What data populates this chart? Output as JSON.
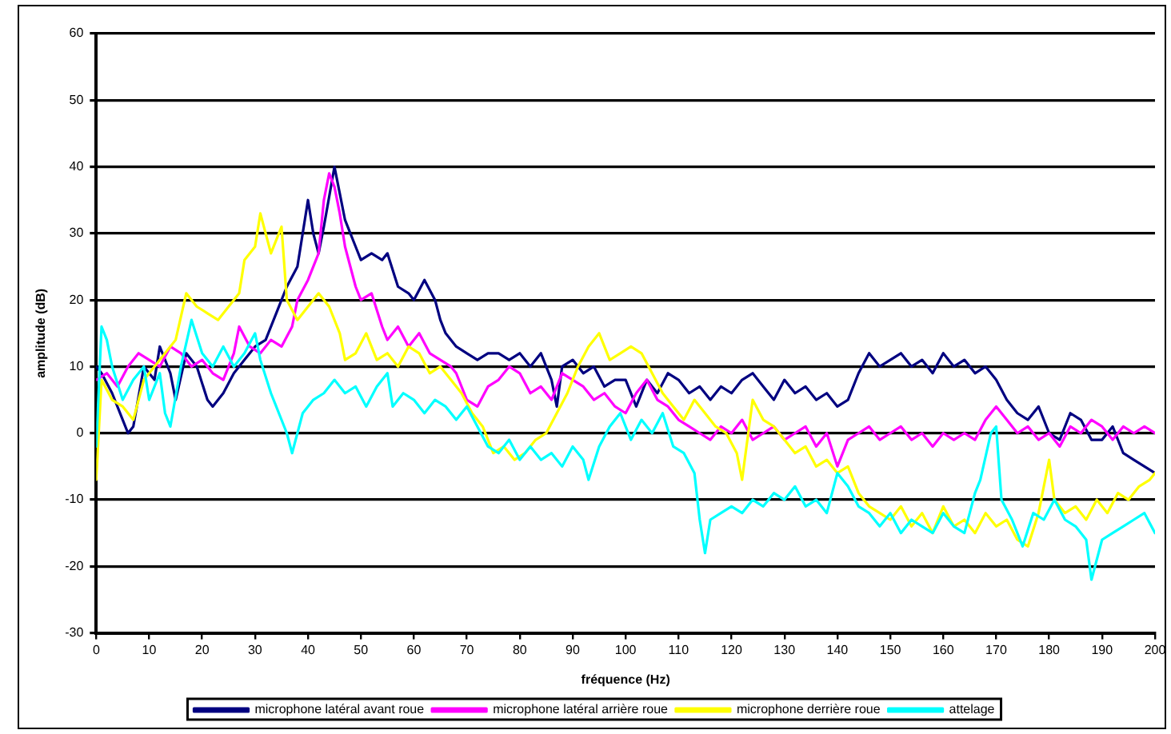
{
  "chart_data": {
    "type": "line",
    "xlabel": "fréquence (Hz)",
    "ylabel": "amplitude (dB)",
    "xlim": [
      0,
      200
    ],
    "xticks": [
      0,
      10,
      20,
      30,
      40,
      50,
      60,
      70,
      80,
      90,
      100,
      110,
      120,
      130,
      140,
      150,
      160,
      170,
      180,
      190,
      200
    ],
    "ylim": [
      -30,
      60
    ],
    "yticks": [
      -30,
      -20,
      -10,
      0,
      10,
      20,
      30,
      40,
      50,
      60
    ],
    "grid": "y",
    "legend": "bottom",
    "marker": "none",
    "line_style": "solid",
    "series": [
      {
        "name": "microphone latéral avant roue",
        "color": "#000080",
        "x": [
          0,
          1,
          3,
          5,
          6,
          7,
          9,
          11,
          12,
          14,
          15,
          17,
          19,
          21,
          22,
          24,
          26,
          28,
          30,
          32,
          34,
          36,
          38,
          40,
          41,
          42,
          43,
          45,
          46,
          47,
          49,
          50,
          52,
          54,
          55,
          57,
          59,
          60,
          62,
          64,
          65,
          66,
          68,
          70,
          72,
          74,
          76,
          78,
          80,
          82,
          84,
          86,
          87,
          88,
          90,
          92,
          94,
          96,
          98,
          100,
          102,
          104,
          106,
          108,
          110,
          112,
          114,
          116,
          118,
          120,
          122,
          124,
          126,
          128,
          130,
          132,
          134,
          136,
          138,
          140,
          142,
          144,
          146,
          148,
          150,
          152,
          154,
          156,
          158,
          160,
          162,
          164,
          166,
          168,
          170,
          172,
          174,
          176,
          178,
          180,
          182,
          184,
          186,
          188,
          190,
          192,
          194,
          196,
          198,
          200
        ],
        "values": [
          10,
          9,
          6,
          2,
          0,
          1,
          10,
          8,
          13,
          9,
          5,
          12,
          10,
          5,
          4,
          6,
          9,
          11,
          13,
          14,
          18,
          22,
          25,
          35,
          30,
          27,
          31,
          40,
          36,
          32,
          28,
          26,
          27,
          26,
          27,
          22,
          21,
          20,
          23,
          20,
          17,
          15,
          13,
          12,
          11,
          12,
          12,
          11,
          12,
          10,
          12,
          8,
          4,
          10,
          11,
          9,
          10,
          7,
          8,
          8,
          4,
          8,
          6,
          9,
          8,
          6,
          7,
          5,
          7,
          6,
          8,
          9,
          7,
          5,
          8,
          6,
          7,
          5,
          6,
          4,
          5,
          9,
          12,
          10,
          11,
          12,
          10,
          11,
          9,
          12,
          10,
          11,
          9,
          10,
          8,
          5,
          3,
          2,
          4,
          0,
          -1,
          3,
          2,
          -1,
          -1,
          1,
          -3,
          -4,
          -5,
          -6
        ]
      },
      {
        "name": "microphone latéral arrière roue",
        "color": "#ff00ff",
        "x": [
          0,
          2,
          4,
          6,
          8,
          10,
          12,
          14,
          16,
          18,
          20,
          22,
          24,
          26,
          27,
          29,
          31,
          33,
          35,
          37,
          38,
          40,
          42,
          43,
          44,
          45,
          46,
          47,
          48,
          49,
          50,
          52,
          54,
          55,
          57,
          59,
          61,
          63,
          65,
          67,
          68,
          70,
          72,
          74,
          76,
          78,
          80,
          82,
          84,
          86,
          88,
          90,
          92,
          94,
          96,
          98,
          100,
          102,
          104,
          106,
          108,
          110,
          112,
          114,
          116,
          118,
          120,
          122,
          124,
          126,
          128,
          130,
          132,
          134,
          136,
          138,
          140,
          142,
          144,
          146,
          148,
          150,
          152,
          154,
          156,
          158,
          160,
          162,
          164,
          166,
          168,
          170,
          172,
          174,
          176,
          178,
          180,
          182,
          184,
          186,
          188,
          190,
          192,
          194,
          196,
          198,
          200
        ],
        "values": [
          8,
          9,
          7,
          10,
          12,
          11,
          10,
          13,
          12,
          10,
          11,
          9,
          8,
          12,
          16,
          13,
          12,
          14,
          13,
          16,
          20,
          23,
          27,
          35,
          39,
          37,
          33,
          28,
          25,
          22,
          20,
          21,
          16,
          14,
          16,
          13,
          15,
          12,
          11,
          10,
          9,
          5,
          4,
          7,
          8,
          10,
          9,
          6,
          7,
          5,
          9,
          8,
          7,
          5,
          6,
          4,
          3,
          6,
          8,
          5,
          4,
          2,
          1,
          0,
          -1,
          1,
          0,
          2,
          -1,
          0,
          1,
          -1,
          0,
          1,
          -2,
          0,
          -5,
          -1,
          0,
          1,
          -1,
          0,
          1,
          -1,
          0,
          -2,
          0,
          -1,
          0,
          -1,
          2,
          4,
          2,
          0,
          1,
          -1,
          0,
          -2,
          1,
          0,
          2,
          1,
          -1,
          1,
          0,
          1,
          0
        ]
      },
      {
        "name": "microphone derrière roue",
        "color": "#ffff00",
        "x": [
          0,
          1,
          3,
          5,
          7,
          9,
          11,
          13,
          15,
          17,
          19,
          21,
          23,
          25,
          27,
          28,
          30,
          31,
          33,
          35,
          36,
          38,
          40,
          42,
          44,
          46,
          47,
          49,
          51,
          53,
          55,
          57,
          59,
          61,
          63,
          65,
          67,
          69,
          71,
          73,
          75,
          77,
          79,
          81,
          83,
          85,
          87,
          89,
          91,
          93,
          95,
          97,
          99,
          101,
          103,
          105,
          107,
          109,
          111,
          113,
          115,
          117,
          119,
          121,
          122,
          124,
          126,
          128,
          130,
          132,
          134,
          136,
          138,
          140,
          142,
          144,
          146,
          148,
          150,
          152,
          154,
          156,
          158,
          160,
          162,
          164,
          166,
          168,
          170,
          172,
          174,
          176,
          178,
          180,
          181,
          183,
          185,
          187,
          189,
          191,
          193,
          195,
          197,
          199,
          200
        ],
        "values": [
          -7,
          8,
          5,
          4,
          2,
          8,
          10,
          12,
          14,
          21,
          19,
          18,
          17,
          19,
          21,
          26,
          28,
          33,
          27,
          31,
          20,
          17,
          19,
          21,
          19,
          15,
          11,
          12,
          15,
          11,
          12,
          10,
          13,
          12,
          9,
          10,
          8,
          6,
          3,
          1,
          -3,
          -2,
          -4,
          -3,
          -1,
          0,
          3,
          6,
          10,
          13,
          15,
          11,
          12,
          13,
          12,
          9,
          6,
          4,
          2,
          5,
          3,
          1,
          0,
          -3,
          -7,
          5,
          2,
          1,
          -1,
          -3,
          -2,
          -5,
          -4,
          -6,
          -5,
          -9,
          -11,
          -12,
          -13,
          -11,
          -14,
          -12,
          -15,
          -11,
          -14,
          -13,
          -15,
          -12,
          -14,
          -13,
          -16,
          -17,
          -12,
          -4,
          -10,
          -12,
          -11,
          -13,
          -10,
          -12,
          -9,
          -10,
          -8,
          -7,
          -6
        ]
      },
      {
        "name": "attelage",
        "color": "#00ffff",
        "x": [
          0,
          1,
          2,
          3,
          5,
          7,
          9,
          10,
          12,
          13,
          14,
          16,
          18,
          20,
          22,
          24,
          26,
          28,
          30,
          31,
          33,
          34,
          36,
          37,
          39,
          41,
          43,
          45,
          47,
          49,
          51,
          53,
          55,
          56,
          58,
          60,
          62,
          64,
          66,
          68,
          70,
          72,
          74,
          76,
          78,
          80,
          82,
          84,
          86,
          88,
          90,
          92,
          93,
          95,
          97,
          99,
          101,
          103,
          105,
          107,
          109,
          111,
          113,
          114,
          115,
          116,
          118,
          120,
          122,
          124,
          126,
          128,
          130,
          132,
          134,
          136,
          138,
          140,
          142,
          144,
          146,
          148,
          150,
          152,
          154,
          156,
          158,
          160,
          162,
          164,
          166,
          167,
          169,
          170,
          171,
          173,
          175,
          177,
          179,
          181,
          183,
          185,
          187,
          188,
          190,
          192,
          194,
          196,
          198,
          200
        ],
        "values": [
          -2,
          16,
          14,
          10,
          5,
          8,
          10,
          5,
          9,
          3,
          1,
          10,
          17,
          12,
          10,
          13,
          10,
          12,
          15,
          11,
          6,
          4,
          0,
          -3,
          3,
          5,
          6,
          8,
          6,
          7,
          4,
          7,
          9,
          4,
          6,
          5,
          3,
          5,
          4,
          2,
          4,
          1,
          -2,
          -3,
          -1,
          -4,
          -2,
          -4,
          -3,
          -5,
          -2,
          -4,
          -7,
          -2,
          1,
          3,
          -1,
          2,
          0,
          3,
          -2,
          -3,
          -6,
          -13,
          -18,
          -13,
          -12,
          -11,
          -12,
          -10,
          -11,
          -9,
          -10,
          -8,
          -11,
          -10,
          -12,
          -6,
          -8,
          -11,
          -12,
          -14,
          -12,
          -15,
          -13,
          -14,
          -15,
          -12,
          -14,
          -15,
          -9,
          -7,
          0,
          1,
          -10,
          -13,
          -17,
          -12,
          -13,
          -10,
          -13,
          -14,
          -16,
          -22,
          -16,
          -15,
          -14,
          -13,
          -12,
          -15
        ]
      }
    ]
  }
}
